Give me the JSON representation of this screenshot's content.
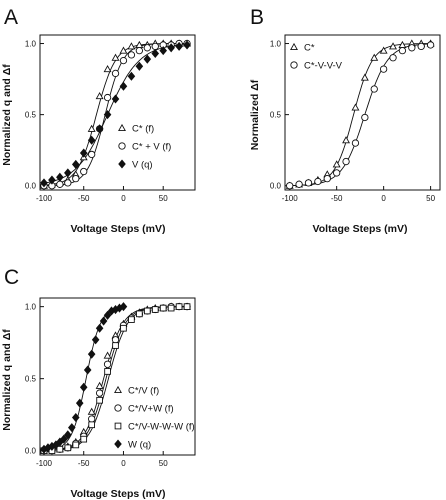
{
  "chart_data": [
    {
      "panel": "A",
      "type": "scatter",
      "xlabel": "Voltage Steps (mV)",
      "ylabel": "Normalized q and Δf",
      "xlim": [
        -105,
        90
      ],
      "ylim": [
        -0.03,
        1.06
      ],
      "xticks": [
        -100,
        -50,
        0,
        50
      ],
      "yticks": [
        0.0,
        0.5,
        1.0
      ],
      "ytick_labels": [
        "0.0",
        "0.5",
        "1.0"
      ],
      "legend_position": "lower-right",
      "series": [
        {
          "name": "C* (f)",
          "marker": "triangle-open",
          "V1/2": -34,
          "k": 12,
          "x": [
            -100,
            -90,
            -80,
            -70,
            -60,
            -50,
            -40,
            -30,
            -20,
            -10,
            0,
            10,
            20,
            30,
            40,
            50,
            60,
            70,
            80
          ],
          "y": [
            0.0,
            0.01,
            0.02,
            0.04,
            0.08,
            0.2,
            0.4,
            0.63,
            0.82,
            0.9,
            0.95,
            0.98,
            0.99,
            0.99,
            1.0,
            1.0,
            1.0,
            1.0,
            1.0
          ]
        },
        {
          "name": "C* + V (f)",
          "marker": "circle-open",
          "V1/2": -23,
          "k": 11,
          "x": [
            -100,
            -90,
            -80,
            -70,
            -60,
            -50,
            -40,
            -30,
            -20,
            -10,
            0,
            10,
            20,
            30,
            40,
            50,
            60,
            70,
            80
          ],
          "y": [
            0.0,
            0.0,
            0.01,
            0.02,
            0.05,
            0.1,
            0.22,
            0.4,
            0.62,
            0.79,
            0.88,
            0.92,
            0.95,
            0.97,
            0.98,
            0.99,
            0.99,
            1.0,
            1.0
          ]
        },
        {
          "name": "V (q)",
          "marker": "diamond-filled",
          "V1/2": -20,
          "k": 20,
          "x": [
            -100,
            -90,
            -80,
            -70,
            -60,
            -50,
            -40,
            -30,
            -20,
            -10,
            0,
            10,
            20,
            30,
            40,
            50,
            60,
            70,
            80
          ],
          "y": [
            0.02,
            0.04,
            0.06,
            0.09,
            0.15,
            0.23,
            0.32,
            0.4,
            0.5,
            0.61,
            0.7,
            0.77,
            0.84,
            0.89,
            0.93,
            0.95,
            0.97,
            0.98,
            0.99
          ]
        }
      ]
    },
    {
      "panel": "B",
      "type": "scatter",
      "xlabel": "Voltage Steps (mV)",
      "ylabel": "Normalized Δf",
      "xlim": [
        -105,
        60
      ],
      "ylim": [
        -0.03,
        1.06
      ],
      "xticks": [
        -100,
        -50,
        0,
        50
      ],
      "yticks": [
        0.0,
        0.5,
        1.0
      ],
      "ytick_labels": [
        "0.0",
        "0.5",
        "1.0"
      ],
      "legend_position": "top-left",
      "series": [
        {
          "name": "C*",
          "marker": "triangle-open",
          "V1/2": -32,
          "k": 10,
          "x": [
            -100,
            -90,
            -80,
            -70,
            -60,
            -50,
            -40,
            -30,
            -20,
            -10,
            0,
            10,
            20,
            30,
            40,
            50
          ],
          "y": [
            0.0,
            0.01,
            0.02,
            0.04,
            0.08,
            0.15,
            0.32,
            0.55,
            0.76,
            0.9,
            0.95,
            0.98,
            0.99,
            1.0,
            1.0,
            1.0
          ]
        },
        {
          "name": "C*-V-V-V",
          "marker": "circle-open",
          "V1/2": -20,
          "k": 12,
          "x": [
            -100,
            -90,
            -80,
            -70,
            -60,
            -50,
            -40,
            -30,
            -20,
            -10,
            0,
            10,
            20,
            30,
            40,
            50
          ],
          "y": [
            0.0,
            0.01,
            0.02,
            0.03,
            0.05,
            0.09,
            0.17,
            0.3,
            0.48,
            0.68,
            0.82,
            0.9,
            0.95,
            0.97,
            0.98,
            0.99
          ]
        }
      ]
    },
    {
      "panel": "C",
      "type": "scatter",
      "xlabel": "Voltage Steps (mV)",
      "ylabel": "Normalized q and Δf",
      "xlim": [
        -105,
        90
      ],
      "ylim": [
        -0.03,
        1.06
      ],
      "xticks": [
        -100,
        -50,
        0,
        50
      ],
      "yticks": [
        0.0,
        0.5,
        1.0
      ],
      "ytick_labels": [
        "0.0",
        "0.5",
        "1.0"
      ],
      "legend_position": "lower-right",
      "series": [
        {
          "name": "C*/V (f)",
          "marker": "triangle-open",
          "V1/2": -25,
          "k": 12,
          "x": [
            -100,
            -90,
            -80,
            -70,
            -60,
            -50,
            -40,
            -30,
            -20,
            -10,
            0,
            10,
            20,
            30,
            40,
            50,
            60,
            70,
            80
          ],
          "y": [
            0.0,
            0.01,
            0.01,
            0.03,
            0.06,
            0.13,
            0.27,
            0.45,
            0.66,
            0.8,
            0.88,
            0.93,
            0.96,
            0.98,
            0.99,
            0.99,
            1.0,
            1.0,
            1.0
          ]
        },
        {
          "name": "C*/V+W (f)",
          "marker": "circle-open",
          "V1/2": -22,
          "k": 12,
          "x": [
            -100,
            -90,
            -80,
            -70,
            -60,
            -50,
            -40,
            -30,
            -20,
            -10,
            0,
            10,
            20,
            30,
            40,
            50,
            60,
            70,
            80
          ],
          "y": [
            0.0,
            0.0,
            0.01,
            0.02,
            0.05,
            0.1,
            0.22,
            0.4,
            0.6,
            0.77,
            0.87,
            0.92,
            0.95,
            0.97,
            0.98,
            0.99,
            1.0,
            1.0,
            1.0
          ]
        },
        {
          "name": "C*/V-W-W-W (f)",
          "marker": "square-open",
          "V1/2": -19,
          "k": 12,
          "x": [
            -100,
            -90,
            -80,
            -70,
            -60,
            -50,
            -40,
            -30,
            -20,
            -10,
            0,
            10,
            20,
            30,
            40,
            50,
            60,
            70,
            80
          ],
          "y": [
            0.0,
            0.0,
            0.01,
            0.02,
            0.04,
            0.08,
            0.18,
            0.35,
            0.55,
            0.73,
            0.85,
            0.91,
            0.95,
            0.97,
            0.98,
            0.99,
            0.99,
            1.0,
            1.0
          ]
        },
        {
          "name": "W (q)",
          "marker": "diamond-filled",
          "V1/2": -47,
          "k": 9,
          "x": [
            -100,
            -95,
            -90,
            -85,
            -80,
            -75,
            -70,
            -65,
            -60,
            -55,
            -50,
            -45,
            -40,
            -35,
            -30,
            -25,
            -20,
            -15,
            -10,
            -5,
            0
          ],
          "y": [
            0.01,
            0.02,
            0.03,
            0.04,
            0.06,
            0.08,
            0.11,
            0.16,
            0.23,
            0.33,
            0.44,
            0.56,
            0.67,
            0.77,
            0.85,
            0.9,
            0.94,
            0.97,
            0.98,
            0.99,
            1.0
          ]
        }
      ]
    }
  ]
}
